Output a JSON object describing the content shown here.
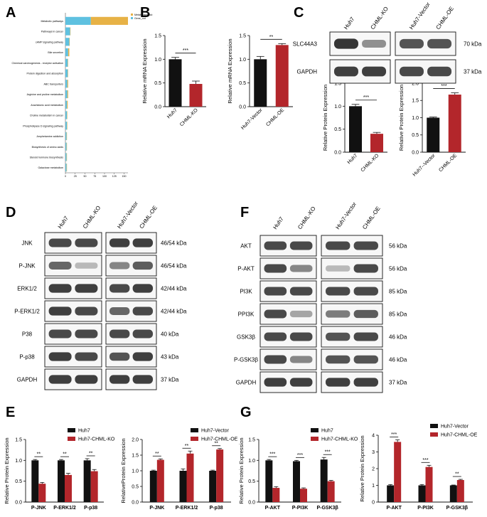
{
  "panels": {
    "A": "A",
    "B": "B",
    "C": "C",
    "D": "D",
    "E": "E",
    "F": "F",
    "G": "G"
  },
  "colors": {
    "black": "#111111",
    "red": "#b3262b",
    "blue": "#5fc1e0",
    "orange": "#e7b246",
    "blot": "#2a2a2a"
  },
  "panel_a": {
    "legend": [
      "Metabolism_out",
      "Gene_out"
    ],
    "categories": [
      "Metabolic pathways",
      "Pathways in cancer",
      "cAMP signaling pathway",
      "Bile secretion",
      "Chemical carcinogenesis - receptor activation",
      "Protein digestion and absorption",
      "ABC transporters",
      "Arginine and proline metabolism",
      "Arachidonic acid metabolism",
      "Choline metabolism in cancer",
      "Phospholipase D signaling pathway",
      "Amphetamine addiction",
      "Biosynthesis of amino acids",
      "Steroid hormone biosynthesis",
      "Galactose metabolism"
    ],
    "xticks": [
      "0",
      "25",
      "50",
      "75",
      "100",
      "125",
      "150"
    ]
  },
  "panel_c_blots": {
    "lanes_left": [
      "Huh7",
      "CHML-KO"
    ],
    "lanes_right": [
      "Huh7-Vector",
      "CHML-OE"
    ],
    "rows": [
      {
        "name": "SLC44A3",
        "kda": "70 kDa"
      },
      {
        "name": "GAPDH",
        "kda": "37 kDa"
      }
    ]
  },
  "panel_d_blots": {
    "lanes_left": [
      "Huh7",
      "CHML-KO"
    ],
    "lanes_right": [
      "Huh7-Vector",
      "CHML-OE"
    ],
    "rows": [
      {
        "name": "JNK",
        "kda": "46/54 kDa"
      },
      {
        "name": "P-JNK",
        "kda": "46/54 kDa"
      },
      {
        "name": "ERK1/2",
        "kda": "42/44 kDa"
      },
      {
        "name": "P-ERK1/2",
        "kda": "42/44 kDa"
      },
      {
        "name": "P38",
        "kda": "40 kDa"
      },
      {
        "name": "P-p38",
        "kda": "43 kDa"
      },
      {
        "name": "GAPDH",
        "kda": "37 kDa"
      }
    ]
  },
  "panel_f_blots": {
    "lanes_left": [
      "Huh7",
      "CHML-KO"
    ],
    "lanes_right": [
      "Huh7-Vector",
      "CHML-OE"
    ],
    "rows": [
      {
        "name": "AKT",
        "kda": "56 kDa"
      },
      {
        "name": "P-AKT",
        "kda": "56 kDa"
      },
      {
        "name": "PI3K",
        "kda": "85 kDa"
      },
      {
        "name": "PPI3K",
        "kda": "85 kDa"
      },
      {
        "name": "GSK3β",
        "kda": "46 kDa"
      },
      {
        "name": "P-GSK3β",
        "kda": "46 kDa"
      },
      {
        "name": "GAPDH",
        "kda": "37 kDa"
      }
    ]
  },
  "chart_data": [
    {
      "id": "A",
      "type": "bar",
      "orientation": "horizontal",
      "stacked": true,
      "title": "",
      "categories": [
        "Metabolic pathways",
        "Pathways in cancer",
        "cAMP signaling pathway",
        "Bile secretion",
        "Chemical carcinogenesis - receptor activation",
        "Protein digestion and absorption",
        "ABC transporters",
        "Arginine and proline metabolism",
        "Arachidonic acid metabolism",
        "Choline metabolism in cancer",
        "Phospholipase D signaling pathway",
        "Amphetamine addiction",
        "Biosynthesis of amino acids",
        "Steroid hormone biosynthesis",
        "Galactose metabolism"
      ],
      "series": [
        {
          "name": "Gene_out",
          "values": [
            65,
            12,
            10,
            7,
            6,
            6,
            5,
            5,
            4,
            4,
            4,
            3,
            3,
            3,
            3
          ]
        },
        {
          "name": "Metabolism_out",
          "values": [
            95,
            1,
            1,
            3,
            1,
            1,
            2,
            2,
            2,
            1,
            1,
            1,
            1,
            1,
            1
          ]
        }
      ],
      "xlim": [
        0,
        160
      ],
      "xticks": [
        0,
        25,
        50,
        75,
        100,
        125,
        150
      ],
      "legend": "top-right"
    },
    {
      "id": "B1",
      "type": "bar",
      "categories": [
        "Huh7",
        "CHML-KO"
      ],
      "values": [
        1.0,
        0.48
      ],
      "errors": [
        0.04,
        0.06
      ],
      "ylabel": "Relative mRNA Expression",
      "ylim": [
        0,
        1.5
      ],
      "yticks": [
        "0.0",
        "0.5",
        "1.0",
        "1.5"
      ],
      "significance": "***"
    },
    {
      "id": "B2",
      "type": "bar",
      "categories": [
        "Huh7-Vector",
        "CHML-OE"
      ],
      "values": [
        1.0,
        1.3
      ],
      "errors": [
        0.06,
        0.03
      ],
      "ylabel": "Relative mRNA Expression",
      "ylim": [
        0,
        1.5
      ],
      "yticks": [
        "0.0",
        "0.5",
        "1.0",
        "1.5"
      ],
      "significance": "**"
    },
    {
      "id": "C1",
      "type": "bar",
      "categories": [
        "Huh7",
        "CHML-KO"
      ],
      "values": [
        1.0,
        0.4
      ],
      "errors": [
        0.04,
        0.03
      ],
      "ylabel": "Relative Protein Expression",
      "ylim": [
        0,
        1.5
      ],
      "yticks": [
        "0.0",
        "0.5",
        "1.0",
        "1.5"
      ],
      "significance": "***"
    },
    {
      "id": "C2",
      "type": "bar",
      "categories": [
        "Huh7--Vector",
        "CHML-OE"
      ],
      "values": [
        1.0,
        1.67
      ],
      "errors": [
        0.02,
        0.05
      ],
      "ylabel": "Relative Protein Expression",
      "ylim": [
        0,
        2.0
      ],
      "yticks": [
        "0.0",
        "0.5",
        "1.0",
        "1.5",
        "2.0"
      ],
      "significance": "***"
    },
    {
      "id": "E1",
      "type": "bar",
      "categories": [
        "P-JNK",
        "P-ERK1/2",
        "P-p38"
      ],
      "series": [
        {
          "name": "Huh7",
          "values": [
            1.0,
            1.0,
            1.0
          ],
          "errors": [
            0.02,
            0.02,
            0.04
          ]
        },
        {
          "name": "Huh7-CHML-KO",
          "values": [
            0.44,
            0.65,
            0.74
          ],
          "errors": [
            0.03,
            0.04,
            0.04
          ]
        }
      ],
      "ylabel": "Relative Protein Expression",
      "ylim": [
        0,
        1.5
      ],
      "yticks": [
        "0.0",
        "0.5",
        "1.0",
        "1.5"
      ],
      "significance": [
        "**",
        "**",
        "**"
      ],
      "legend": "top-right"
    },
    {
      "id": "E2",
      "type": "bar",
      "categories": [
        "P-JNK",
        "P-ERK1/2",
        "P-p38"
      ],
      "series": [
        {
          "name": "Huh7-Vector",
          "values": [
            1.0,
            1.0,
            1.0
          ],
          "errors": [
            0.02,
            0.06,
            0.02
          ]
        },
        {
          "name": "Huh7-CHML-OE",
          "values": [
            1.35,
            1.55,
            1.68
          ],
          "errors": [
            0.03,
            0.08,
            0.03
          ]
        }
      ],
      "ylabel": "RelativeProtein Expression",
      "ylim": [
        0,
        2.0
      ],
      "yticks": [
        "0.0",
        "0.5",
        "1.0",
        "1.5",
        "2.0"
      ],
      "significance": [
        "**",
        "**",
        "**"
      ],
      "legend": "top-right"
    },
    {
      "id": "G1",
      "type": "bar",
      "categories": [
        "P-AKT",
        "P-PI3K",
        "P-GSK3β"
      ],
      "series": [
        {
          "name": "Huh7",
          "values": [
            1.0,
            0.98,
            1.02
          ],
          "errors": [
            0.02,
            0.02,
            0.05
          ]
        },
        {
          "name": "Huh7-CHML-KO",
          "values": [
            0.34,
            0.32,
            0.5
          ],
          "errors": [
            0.03,
            0.02,
            0.02
          ]
        }
      ],
      "ylabel": "Relative Protein Expression",
      "ylim": [
        0,
        1.5
      ],
      "yticks": [
        "0.0",
        "0.5",
        "1.0",
        "1.5"
      ],
      "significance": [
        "***",
        "***",
        "***"
      ],
      "legend": "top-right"
    },
    {
      "id": "G2",
      "type": "bar",
      "categories": [
        "P-AKT",
        "P-PI3K",
        "P-GSK3β"
      ],
      "series": [
        {
          "name": "Huh7-Vector",
          "values": [
            1.0,
            1.0,
            1.0
          ],
          "errors": [
            0.05,
            0.05,
            0.02
          ]
        },
        {
          "name": "Huh7-CHML-OE",
          "values": [
            3.6,
            2.1,
            1.32
          ],
          "errors": [
            0.12,
            0.1,
            0.04
          ]
        }
      ],
      "ylabel": "Relative Protein Expression",
      "ylim": [
        0,
        4
      ],
      "yticks": [
        "0",
        "1",
        "2",
        "3",
        "4"
      ],
      "significance": [
        "***",
        "***",
        "**"
      ],
      "legend": "top-right"
    }
  ]
}
